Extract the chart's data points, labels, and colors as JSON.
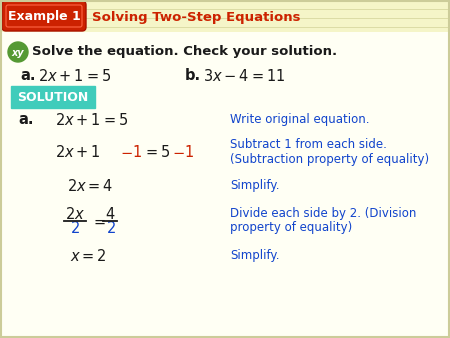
{
  "bg_color": "#fefee8",
  "header_bg_color": "#f5f5c8",
  "header_badge_color": "#cc2200",
  "header_badge_text": "Example 1",
  "header_subtitle": "Solving Two-Step Equations",
  "header_subtitle_color": "#cc2200",
  "solution_bg": "#40ccbb",
  "solution_text": "SOLUTION",
  "problem_label": "Solve the equation. Check your solution.",
  "xy_color": "#559933",
  "dark": "#1a1a1a",
  "blue": "#1144cc",
  "red": "#cc2200",
  "line_color": "#e8e8b0",
  "border_color": "#cccc99"
}
